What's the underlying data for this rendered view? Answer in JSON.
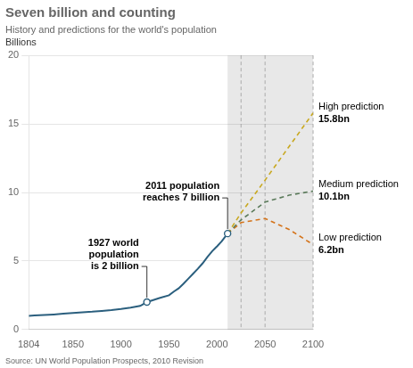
{
  "chart_data": {
    "type": "line",
    "title": "Seven billion and counting",
    "subtitle": "History and predictions for the world's population",
    "ylabel": "Billions",
    "source": "Source: UN World Population Prospects, 2010 Revision",
    "xlim": [
      1804,
      2100
    ],
    "ylim": [
      0,
      20
    ],
    "xticks": [
      1804,
      1850,
      1900,
      1950,
      2000,
      2050,
      2100
    ],
    "yticks": [
      0,
      5,
      10,
      15,
      20
    ],
    "grid": "y",
    "shade": {
      "from": 2011,
      "to": 2100,
      "color": "#e8e8e8"
    },
    "vlines": {
      "x": [
        2025,
        2050,
        2100
      ],
      "color": "#aaaaaa"
    },
    "series": [
      {
        "color": "#2b5f7e",
        "line_style": "solid",
        "x": [
          1804,
          1810,
          1820,
          1830,
          1840,
          1850,
          1860,
          1870,
          1880,
          1890,
          1900,
          1910,
          1920,
          1927,
          1930,
          1940,
          1950,
          1955,
          1960,
          1965,
          1970,
          1975,
          1980,
          1985,
          1990,
          1995,
          1999,
          2000,
          2005,
          2011
        ],
        "values": [
          1.0,
          1.02,
          1.06,
          1.1,
          1.15,
          1.2,
          1.26,
          1.3,
          1.36,
          1.42,
          1.5,
          1.6,
          1.72,
          2.0,
          2.07,
          2.3,
          2.5,
          2.77,
          3.0,
          3.34,
          3.7,
          4.07,
          4.43,
          4.83,
          5.3,
          5.72,
          6.0,
          6.07,
          6.45,
          7.0
        ]
      },
      {
        "name": "High prediction",
        "color": "#c8a820",
        "line_style": "dashed",
        "x": [
          2011,
          2025,
          2050,
          2100
        ],
        "values": [
          7.0,
          8.5,
          10.9,
          15.8
        ],
        "value_labels": [
          null,
          null,
          null,
          "15.8bn"
        ]
      },
      {
        "name": "Medium prediction",
        "color": "#5a7a5a",
        "line_style": "dashed",
        "x": [
          2011,
          2025,
          2050,
          2075,
          2100
        ],
        "values": [
          7.0,
          8.0,
          9.3,
          9.8,
          10.1
        ],
        "value_labels": [
          null,
          null,
          null,
          null,
          "10.1bn"
        ]
      },
      {
        "name": "Low prediction",
        "color": "#d4731a",
        "line_style": "dashed",
        "x": [
          2011,
          2025,
          2050,
          2075,
          2100
        ],
        "values": [
          7.0,
          7.8,
          8.1,
          7.3,
          6.2
        ],
        "value_labels": [
          null,
          null,
          null,
          null,
          "6.2bn"
        ]
      }
    ],
    "annotations": [
      {
        "text": "1927 world\npopulation\nis 2 billion",
        "x": 1927,
        "y": 2.0
      },
      {
        "text": "2011 population\nreaches 7 billion",
        "x": 2011,
        "y": 7.0
      }
    ]
  }
}
